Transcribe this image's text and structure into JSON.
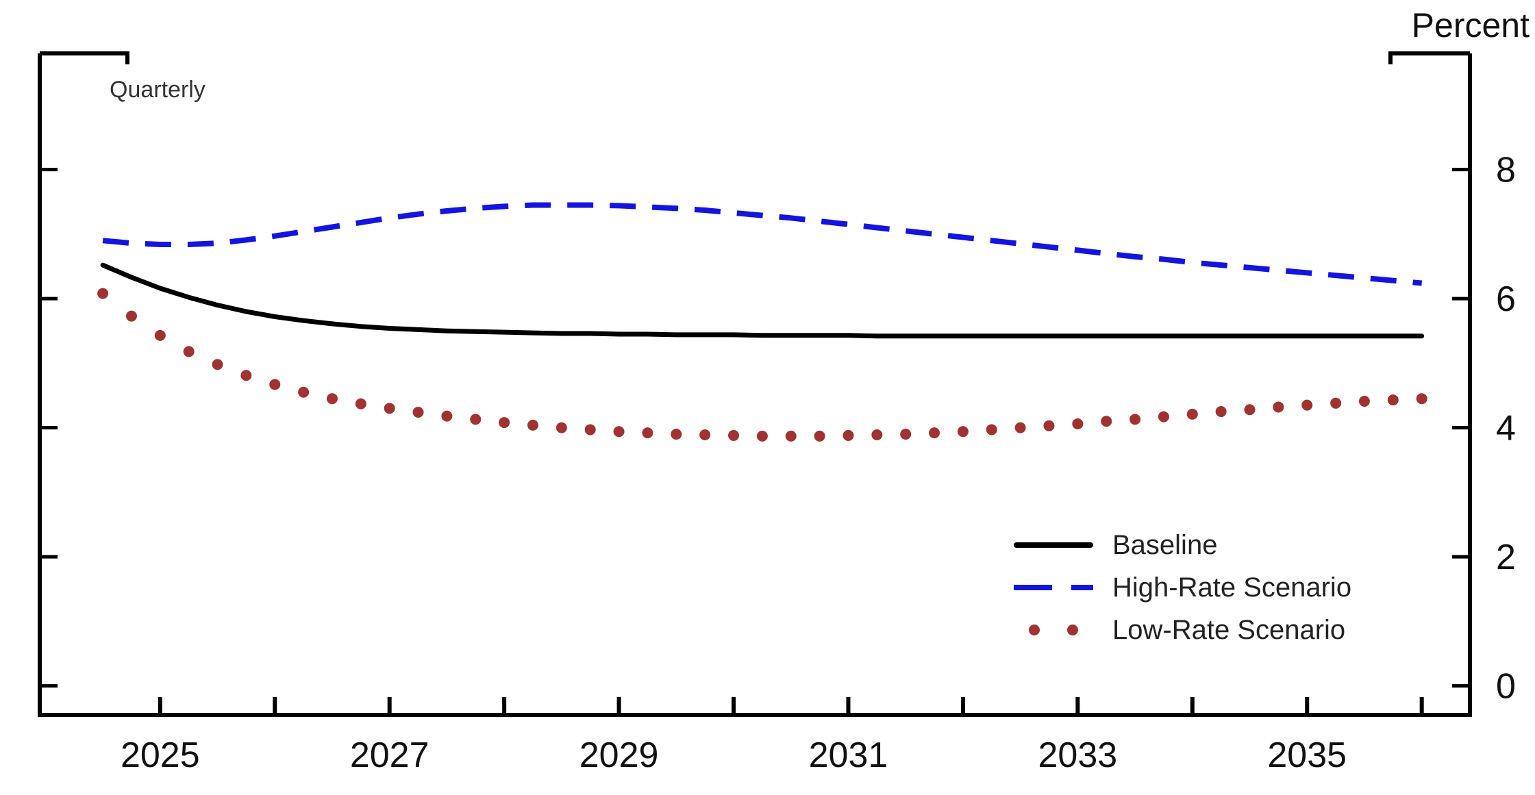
{
  "chart_data": {
    "type": "line",
    "title": "",
    "unit_label": "Percent",
    "frequency_label": "Quarterly",
    "grid": false,
    "legend_position": "lower-right-inside",
    "x_start": 2024.5,
    "x_step": 0.25,
    "xlim": [
      2023.95,
      2036.42
    ],
    "ylim": [
      -0.45,
      9.8
    ],
    "y_ticks": [
      0,
      2,
      4,
      6,
      8
    ],
    "x_tick_years": [
      2025,
      2026,
      2027,
      2028,
      2029,
      2030,
      2031,
      2032,
      2033,
      2034,
      2035,
      2036
    ],
    "x_label_years": [
      2025,
      2027,
      2029,
      2031,
      2033,
      2035
    ],
    "axis_color": "#000000",
    "series": [
      {
        "name": "Baseline",
        "style": "solid",
        "color": "#000000",
        "values": [
          6.52,
          6.33,
          6.16,
          6.02,
          5.9,
          5.8,
          5.72,
          5.66,
          5.61,
          5.57,
          5.54,
          5.52,
          5.5,
          5.49,
          5.48,
          5.47,
          5.46,
          5.46,
          5.45,
          5.45,
          5.44,
          5.44,
          5.44,
          5.43,
          5.43,
          5.43,
          5.43,
          5.42,
          5.42,
          5.42,
          5.42,
          5.42,
          5.42,
          5.42,
          5.42,
          5.42,
          5.42,
          5.42,
          5.42,
          5.42,
          5.42,
          5.42,
          5.42,
          5.42,
          5.42,
          5.42,
          5.42
        ]
      },
      {
        "name": "High-Rate Scenario",
        "style": "dashed",
        "color": "#1414e0",
        "values": [
          6.9,
          6.86,
          6.84,
          6.84,
          6.86,
          6.91,
          6.97,
          7.04,
          7.11,
          7.18,
          7.25,
          7.31,
          7.36,
          7.4,
          7.43,
          7.45,
          7.45,
          7.45,
          7.44,
          7.42,
          7.4,
          7.37,
          7.33,
          7.29,
          7.25,
          7.2,
          7.15,
          7.1,
          7.05,
          7.0,
          6.95,
          6.9,
          6.85,
          6.8,
          6.75,
          6.7,
          6.65,
          6.61,
          6.56,
          6.52,
          6.48,
          6.44,
          6.4,
          6.36,
          6.32,
          6.28,
          6.24
        ]
      },
      {
        "name": "Low-Rate Scenario",
        "style": "dotted",
        "color": "#a03232",
        "values": [
          6.08,
          5.73,
          5.43,
          5.18,
          4.98,
          4.81,
          4.67,
          4.55,
          4.45,
          4.37,
          4.3,
          4.24,
          4.18,
          4.13,
          4.08,
          4.04,
          4.0,
          3.97,
          3.94,
          3.92,
          3.9,
          3.89,
          3.88,
          3.87,
          3.87,
          3.87,
          3.88,
          3.89,
          3.9,
          3.92,
          3.94,
          3.97,
          4.0,
          4.03,
          4.06,
          4.1,
          4.13,
          4.17,
          4.21,
          4.25,
          4.28,
          4.32,
          4.35,
          4.38,
          4.41,
          4.43,
          4.45
        ]
      }
    ]
  }
}
